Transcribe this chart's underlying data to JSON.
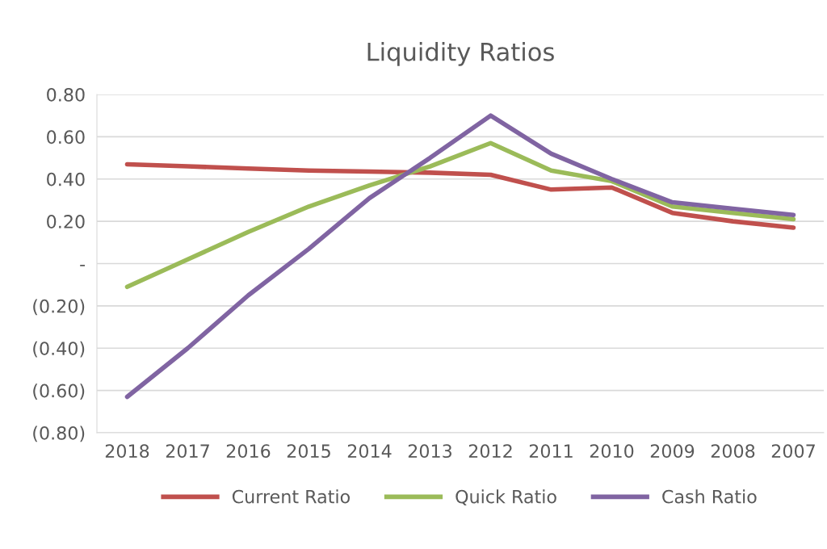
{
  "chart_data": {
    "type": "line",
    "title": "Liquidity Ratios",
    "categories": [
      "2018",
      "2017",
      "2016",
      "2015",
      "2014",
      "2013",
      "2012",
      "2011",
      "2010",
      "2009",
      "2008",
      "2007"
    ],
    "series": [
      {
        "name": "Current Ratio",
        "color": "#c0504d",
        "values": [
          0.47,
          0.46,
          0.45,
          0.44,
          0.435,
          0.43,
          0.42,
          0.35,
          0.36,
          0.24,
          0.2,
          0.17
        ]
      },
      {
        "name": "Quick Ratio",
        "color": "#9bbb59",
        "values": [
          -0.11,
          0.02,
          0.15,
          0.27,
          0.37,
          0.46,
          0.57,
          0.44,
          0.39,
          0.27,
          0.24,
          0.21
        ]
      },
      {
        "name": "Cash Ratio",
        "color": "#8064a2",
        "values": [
          -0.63,
          -0.4,
          -0.15,
          0.07,
          0.31,
          0.5,
          0.7,
          0.52,
          0.4,
          0.29,
          0.26,
          0.23
        ]
      }
    ],
    "ylim": [
      -0.8,
      0.8
    ],
    "yticks": [
      {
        "value": -0.8,
        "label": "(0.80)"
      },
      {
        "value": -0.6,
        "label": "(0.60)"
      },
      {
        "value": -0.4,
        "label": "(0.40)"
      },
      {
        "value": -0.2,
        "label": "(0.20)"
      },
      {
        "value": 0,
        "label": "-"
      },
      {
        "value": 0.2,
        "label": "0.20"
      },
      {
        "value": 0.4,
        "label": "0.40"
      },
      {
        "value": 0.6,
        "label": "0.60"
      },
      {
        "value": 0.8,
        "label": "0.80"
      }
    ],
    "grid": "y",
    "legend": "bottom",
    "marker": "none",
    "line_style": "solid"
  }
}
